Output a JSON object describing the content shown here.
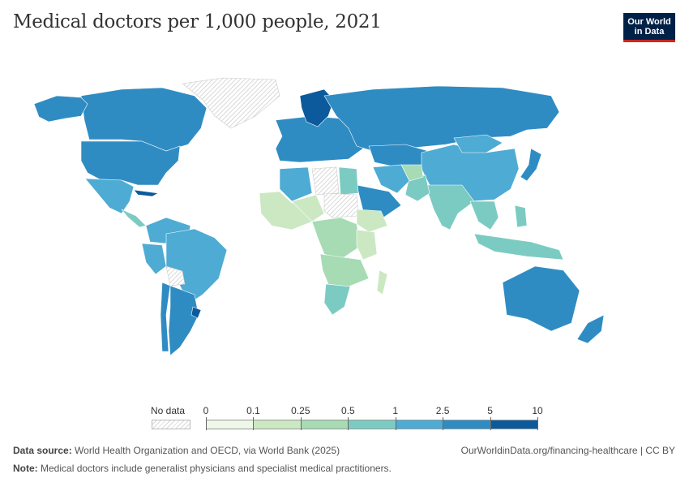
{
  "title": "Medical doctors per 1,000 people, 2021",
  "logo": {
    "line1": "Our World",
    "line2": "in Data"
  },
  "legend": {
    "no_data_label": "No data",
    "ticks": [
      "0",
      "0.1",
      "0.25",
      "0.5",
      "1",
      "2.5",
      "5",
      "10"
    ],
    "colors": [
      "#eef7e8",
      "#cbe8c3",
      "#a6dbb3",
      "#7ccbc2",
      "#4eabd3",
      "#2f8cc3",
      "#0c5a9c"
    ],
    "no_data_pattern_color": "#d8d8d8"
  },
  "map_regions": [
    {
      "name": "Canada",
      "bin": 5
    },
    {
      "name": "United States",
      "bin": 5
    },
    {
      "name": "Alaska",
      "bin": 5
    },
    {
      "name": "Greenland",
      "bin": -1
    },
    {
      "name": "Mexico",
      "bin": 4
    },
    {
      "name": "Central America",
      "bin": 3
    },
    {
      "name": "Cuba",
      "bin": 6
    },
    {
      "name": "Colombia & Venezuela",
      "bin": 4
    },
    {
      "name": "Brazil",
      "bin": 4
    },
    {
      "name": "Peru",
      "bin": 4
    },
    {
      "name": "Bolivia",
      "bin": -1
    },
    {
      "name": "Argentina",
      "bin": 5
    },
    {
      "name": "Chile",
      "bin": 5
    },
    {
      "name": "Uruguay",
      "bin": 6
    },
    {
      "name": "Europe",
      "bin": 5
    },
    {
      "name": "Scandinavia",
      "bin": 6
    },
    {
      "name": "Russia",
      "bin": 5
    },
    {
      "name": "Kazakhstan",
      "bin": 5
    },
    {
      "name": "China",
      "bin": 4
    },
    {
      "name": "Mongolia",
      "bin": 4
    },
    {
      "name": "Japan",
      "bin": 5
    },
    {
      "name": "India",
      "bin": 3
    },
    {
      "name": "Pakistan",
      "bin": 3
    },
    {
      "name": "Afghanistan",
      "bin": 2
    },
    {
      "name": "Iran",
      "bin": 4
    },
    {
      "name": "Saudi Arabia",
      "bin": 5
    },
    {
      "name": "Southeast Asia",
      "bin": 3
    },
    {
      "name": "Indonesia",
      "bin": 3
    },
    {
      "name": "Philippines",
      "bin": 3
    },
    {
      "name": "Australia",
      "bin": 5
    },
    {
      "name": "New Zealand",
      "bin": 5
    },
    {
      "name": "Algeria",
      "bin": 4
    },
    {
      "name": "Libya",
      "bin": -1
    },
    {
      "name": "Egypt",
      "bin": 3
    },
    {
      "name": "West Africa",
      "bin": 1
    },
    {
      "name": "Sahel",
      "bin": 1
    },
    {
      "name": "Sudan",
      "bin": -1
    },
    {
      "name": "Ethiopia",
      "bin": 1
    },
    {
      "name": "Central Africa",
      "bin": 2
    },
    {
      "name": "East Africa",
      "bin": 1
    },
    {
      "name": "Southern Africa",
      "bin": 2
    },
    {
      "name": "South Africa",
      "bin": 3
    },
    {
      "name": "Madagascar",
      "bin": 1
    }
  ],
  "footer": {
    "source_label": "Data source:",
    "source_text": "World Health Organization and OECD, via World Bank (2025)",
    "url_text": "OurWorldinData.org/financing-healthcare | CC BY",
    "note_label": "Note:",
    "note_text": "Medical doctors include generalist physicians and specialist medical practitioners."
  }
}
